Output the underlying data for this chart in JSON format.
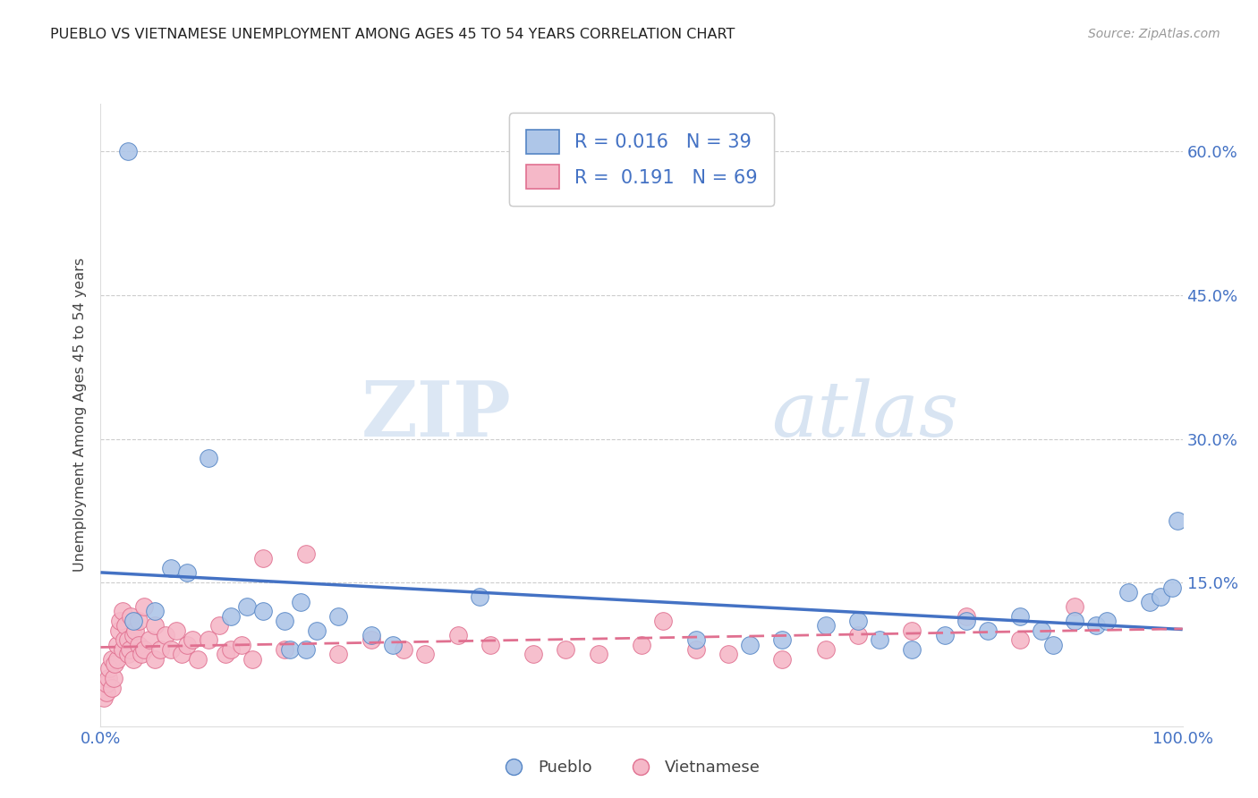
{
  "title": "PUEBLO VS VIETNAMESE UNEMPLOYMENT AMONG AGES 45 TO 54 YEARS CORRELATION CHART",
  "source": "Source: ZipAtlas.com",
  "ylabel": "Unemployment Among Ages 45 to 54 years",
  "xlim": [
    0,
    100
  ],
  "ylim": [
    0,
    65
  ],
  "ytick_values": [
    15,
    30,
    45,
    60
  ],
  "grid_color": "#cccccc",
  "background_color": "#ffffff",
  "pueblo_color": "#aec6e8",
  "viet_color": "#f5b8c8",
  "pueblo_edge_color": "#5585c5",
  "viet_edge_color": "#e07090",
  "pueblo_line_color": "#4472c4",
  "viet_line_color": "#e07090",
  "pueblo_R": "0.016",
  "pueblo_N": "39",
  "viet_R": "0.191",
  "viet_N": "69",
  "watermark_zip": "ZIP",
  "watermark_atlas": "atlas",
  "pueblo_scatter_x": [
    3.0,
    5.0,
    6.5,
    8.0,
    10.0,
    12.0,
    13.5,
    15.0,
    17.0,
    18.5,
    20.0,
    22.0,
    25.0,
    27.0,
    35.0,
    55.0,
    60.0,
    63.0,
    67.0,
    70.0,
    72.0,
    75.0,
    78.0,
    80.0,
    82.0,
    85.0,
    87.0,
    88.0,
    90.0,
    92.0,
    93.0,
    95.0,
    97.0,
    98.0,
    99.0,
    99.5,
    17.5,
    19.0,
    2.5
  ],
  "pueblo_scatter_y": [
    11.0,
    12.0,
    16.5,
    16.0,
    28.0,
    11.5,
    12.5,
    12.0,
    11.0,
    13.0,
    10.0,
    11.5,
    9.5,
    8.5,
    13.5,
    9.0,
    8.5,
    9.0,
    10.5,
    11.0,
    9.0,
    8.0,
    9.5,
    11.0,
    10.0,
    11.5,
    10.0,
    8.5,
    11.0,
    10.5,
    11.0,
    14.0,
    13.0,
    13.5,
    14.5,
    21.5,
    8.0,
    8.0,
    60.0
  ],
  "viet_scatter_x": [
    0.3,
    0.5,
    0.5,
    0.7,
    0.8,
    1.0,
    1.0,
    1.2,
    1.3,
    1.5,
    1.5,
    1.7,
    1.8,
    2.0,
    2.0,
    2.2,
    2.3,
    2.5,
    2.5,
    2.7,
    2.8,
    3.0,
    3.0,
    3.2,
    3.5,
    3.5,
    3.8,
    4.0,
    4.0,
    4.5,
    5.0,
    5.0,
    5.5,
    6.0,
    6.5,
    7.0,
    7.5,
    8.0,
    8.5,
    9.0,
    10.0,
    11.0,
    11.5,
    12.0,
    13.0,
    14.0,
    15.0,
    17.0,
    19.0,
    22.0,
    25.0,
    28.0,
    30.0,
    33.0,
    36.0,
    40.0,
    43.0,
    46.0,
    50.0,
    52.0,
    55.0,
    58.0,
    63.0,
    67.0,
    70.0,
    75.0,
    80.0,
    85.0,
    90.0
  ],
  "viet_scatter_y": [
    3.0,
    3.5,
    4.5,
    5.0,
    6.0,
    4.0,
    7.0,
    5.0,
    6.5,
    7.0,
    8.5,
    10.0,
    11.0,
    8.0,
    12.0,
    9.0,
    10.5,
    7.5,
    9.0,
    8.0,
    11.5,
    7.0,
    9.5,
    10.0,
    8.5,
    11.0,
    7.5,
    8.0,
    12.5,
    9.0,
    7.0,
    10.5,
    8.0,
    9.5,
    8.0,
    10.0,
    7.5,
    8.5,
    9.0,
    7.0,
    9.0,
    10.5,
    7.5,
    8.0,
    8.5,
    7.0,
    17.5,
    8.0,
    18.0,
    7.5,
    9.0,
    8.0,
    7.5,
    9.5,
    8.5,
    7.5,
    8.0,
    7.5,
    8.5,
    11.0,
    8.0,
    7.5,
    7.0,
    8.0,
    9.5,
    10.0,
    11.5,
    9.0,
    12.5
  ]
}
